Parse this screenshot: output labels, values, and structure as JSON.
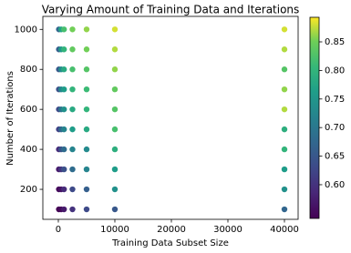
{
  "chart_data": {
    "type": "scatter",
    "title": "Varying Amount of Training Data and Iterations",
    "x_label": "Training Data Subset Size",
    "y_label": "Number of Iterations",
    "colormap": "viridis",
    "x": [
      100,
      100,
      100,
      100,
      100,
      100,
      100,
      100,
      100,
      100,
      500,
      500,
      500,
      500,
      500,
      500,
      500,
      500,
      500,
      500,
      1000,
      1000,
      1000,
      1000,
      1000,
      1000,
      1000,
      1000,
      1000,
      1000,
      2500,
      2500,
      2500,
      2500,
      2500,
      2500,
      2500,
      2500,
      2500,
      2500,
      5000,
      5000,
      5000,
      5000,
      5000,
      5000,
      5000,
      5000,
      5000,
      5000,
      10000,
      10000,
      10000,
      10000,
      10000,
      10000,
      10000,
      10000,
      10000,
      10000,
      40000,
      40000,
      40000,
      40000,
      40000,
      40000,
      40000,
      40000,
      40000,
      40000
    ],
    "y": [
      100,
      200,
      300,
      400,
      500,
      600,
      700,
      800,
      900,
      1000,
      100,
      200,
      300,
      400,
      500,
      600,
      700,
      800,
      900,
      1000,
      100,
      200,
      300,
      400,
      500,
      600,
      700,
      800,
      900,
      1000,
      100,
      200,
      300,
      400,
      500,
      600,
      700,
      800,
      900,
      1000,
      100,
      200,
      300,
      400,
      500,
      600,
      700,
      800,
      900,
      1000,
      100,
      200,
      300,
      400,
      500,
      600,
      700,
      800,
      900,
      1000,
      100,
      200,
      300,
      400,
      500,
      600,
      700,
      800,
      900,
      1000
    ],
    "c": [
      0.54,
      0.55,
      0.57,
      0.59,
      0.62,
      0.63,
      0.64,
      0.65,
      0.66,
      0.67,
      0.55,
      0.56,
      0.6,
      0.64,
      0.67,
      0.69,
      0.72,
      0.73,
      0.75,
      0.77,
      0.57,
      0.59,
      0.64,
      0.68,
      0.72,
      0.74,
      0.76,
      0.78,
      0.8,
      0.82,
      0.6,
      0.63,
      0.68,
      0.72,
      0.76,
      0.78,
      0.8,
      0.82,
      0.84,
      0.85,
      0.63,
      0.66,
      0.72,
      0.73,
      0.78,
      0.8,
      0.81,
      0.83,
      0.85,
      0.86,
      0.65,
      0.74,
      0.76,
      0.79,
      0.82,
      0.83,
      0.84,
      0.86,
      0.87,
      0.88,
      0.67,
      0.74,
      0.76,
      0.8,
      0.79,
      0.87,
      0.86,
      0.83,
      0.87,
      0.88
    ],
    "xlim": [
      -2740,
      42420
    ],
    "ylim": [
      50,
      1065
    ],
    "clim": [
      0.541,
      0.893
    ],
    "xticks": [
      0,
      10000,
      20000,
      30000,
      40000
    ],
    "yticks": [
      200,
      400,
      600,
      800,
      1000
    ],
    "cticks": [
      {
        "value": 0.6,
        "label": "0.60"
      },
      0.65,
      {
        "value": 0.7,
        "label": "0.70"
      },
      0.75,
      {
        "value": 0.8,
        "label": "0.80"
      },
      0.85
    ]
  }
}
